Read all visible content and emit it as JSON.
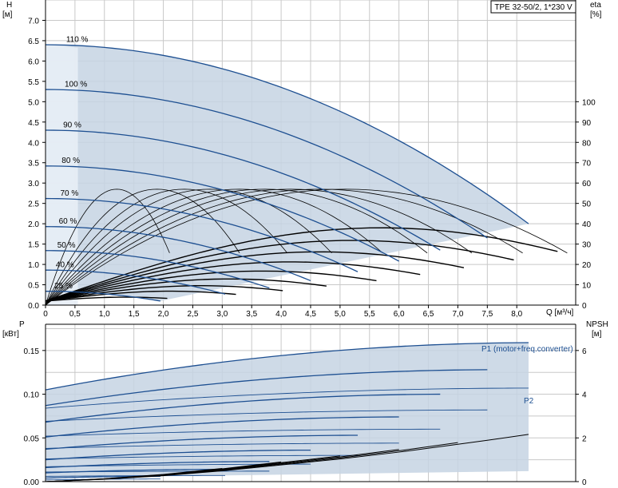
{
  "chart_data": [
    {
      "type": "line",
      "title": "TPE 32-50/2, 1*230 V",
      "x": {
        "label": "Q [м³/ч]",
        "range": [
          0,
          9.0
        ],
        "ticks": [
          "0",
          "0,5",
          "1,0",
          "1,5",
          "2,0",
          "2,5",
          "3,0",
          "3,5",
          "4,0",
          "4,5",
          "5,0",
          "5,5",
          "6,0",
          "6,5",
          "7,0",
          "7,5",
          "8,0"
        ],
        "tick_values": [
          0,
          0.5,
          1.0,
          1.5,
          2.0,
          2.5,
          3.0,
          3.5,
          4.0,
          4.5,
          5.0,
          5.5,
          6.0,
          6.5,
          7.0,
          7.5,
          8.0
        ]
      },
      "y_left": {
        "label_top": "H",
        "label_unit": "[м]",
        "range": [
          0,
          7.5
        ],
        "ticks": [
          "0.0",
          "0.5",
          "1.0",
          "1.5",
          "2.0",
          "2.5",
          "3.0",
          "3.5",
          "4.0",
          "4.5",
          "5.0",
          "5.5",
          "6.0",
          "6.5",
          "7.0"
        ],
        "tick_values": [
          0,
          0.5,
          1.0,
          1.5,
          2.0,
          2.5,
          3.0,
          3.5,
          4.0,
          4.5,
          5.0,
          5.5,
          6.0,
          6.5,
          7.0
        ]
      },
      "y_right": {
        "label_top": "eta",
        "label_unit": "[%]",
        "range": [
          0,
          150
        ],
        "ticks": [
          "0",
          "10",
          "20",
          "30",
          "40",
          "50",
          "60",
          "70",
          "80",
          "90",
          "100"
        ],
        "tick_values": [
          0,
          10,
          20,
          30,
          40,
          50,
          60,
          70,
          80,
          90,
          100
        ]
      },
      "grid": true,
      "speed_curves": [
        {
          "label": "110 %",
          "h0": 6.4,
          "qmax": 8.2,
          "hmax": 2.0
        },
        {
          "label": "100 %",
          "h0": 5.3,
          "qmax": 7.5,
          "hmax": 1.65
        },
        {
          "label": "90 %",
          "h0": 4.3,
          "qmax": 6.7,
          "hmax": 1.35
        },
        {
          "label": "80 %",
          "h0": 3.42,
          "qmax": 6.0,
          "hmax": 1.08
        },
        {
          "label": "70 %",
          "h0": 2.62,
          "qmax": 5.3,
          "hmax": 0.82
        },
        {
          "label": "60 %",
          "h0": 1.93,
          "qmax": 4.5,
          "hmax": 0.6
        },
        {
          "label": "50 %",
          "h0": 1.34,
          "qmax": 3.8,
          "hmax": 0.42
        },
        {
          "label": "40 %",
          "h0": 0.86,
          "qmax": 3.05,
          "hmax": 0.27
        },
        {
          "label": "25 %",
          "h0": 0.34,
          "qmax": 1.95,
          "hmax": 0.1
        }
      ],
      "efficiency_peak_percent": 57
    },
    {
      "type": "line",
      "x": {
        "range": [
          0,
          9.0
        ]
      },
      "y_left": {
        "label_top": "P",
        "label_unit": "[кВт]",
        "range": [
          0,
          0.18
        ],
        "ticks": [
          "0.00",
          "0.05",
          "0.10",
          "0.15"
        ],
        "tick_values": [
          0,
          0.05,
          0.1,
          0.15
        ]
      },
      "y_right": {
        "label_top": "NPSH",
        "label_unit": "[м]",
        "range": [
          0,
          7.2
        ],
        "ticks": [
          "0",
          "2",
          "4",
          "6"
        ],
        "tick_values": [
          0,
          2,
          4,
          6
        ]
      },
      "grid": true,
      "series_labels": {
        "p1": "P1 (motor+freq.converter)",
        "p2": "P2"
      },
      "p1_curves": [
        {
          "p0": 0.105,
          "pmax": 0.159,
          "qmax": 8.2
        },
        {
          "p0": 0.087,
          "pmax": 0.128,
          "qmax": 7.5
        },
        {
          "p0": 0.068,
          "pmax": 0.1,
          "qmax": 6.7
        },
        {
          "p0": 0.051,
          "pmax": 0.074,
          "qmax": 6.0
        },
        {
          "p0": 0.037,
          "pmax": 0.053,
          "qmax": 5.3
        },
        {
          "p0": 0.025,
          "pmax": 0.036,
          "qmax": 4.5
        },
        {
          "p0": 0.016,
          "pmax": 0.023,
          "qmax": 3.8
        },
        {
          "p0": 0.01,
          "pmax": 0.014,
          "qmax": 3.05
        },
        {
          "p0": 0.004,
          "pmax": 0.006,
          "qmax": 1.95
        }
      ],
      "p2_curves": [
        {
          "p0": 0.084,
          "pmax": 0.107,
          "qmax": 8.2
        },
        {
          "p0": 0.069,
          "pmax": 0.082,
          "qmax": 7.5
        },
        {
          "p0": 0.052,
          "pmax": 0.06,
          "qmax": 6.7
        },
        {
          "p0": 0.038,
          "pmax": 0.044,
          "qmax": 6.0
        },
        {
          "p0": 0.026,
          "pmax": 0.03,
          "qmax": 5.3
        },
        {
          "p0": 0.017,
          "pmax": 0.02,
          "qmax": 4.5
        },
        {
          "p0": 0.011,
          "pmax": 0.012,
          "qmax": 3.8
        },
        {
          "p0": 0.006,
          "pmax": 0.007,
          "qmax": 3.05
        },
        {
          "p0": 0.002,
          "pmax": 0.003,
          "qmax": 1.95
        }
      ],
      "npsh_curve": {
        "q": [
          0,
          1.0,
          2.0,
          3.0,
          4.0,
          5.0,
          6.0,
          7.0,
          7.5,
          8.2
        ],
        "npsh": [
          0,
          0.12,
          0.3,
          0.55,
          0.85,
          1.15,
          1.5,
          1.9,
          2.1,
          2.4
        ]
      }
    }
  ],
  "colors": {
    "curve": "#1d4f91",
    "fill": "#c6d3e3",
    "grid": "#c8c8c8",
    "black": "#000000"
  }
}
